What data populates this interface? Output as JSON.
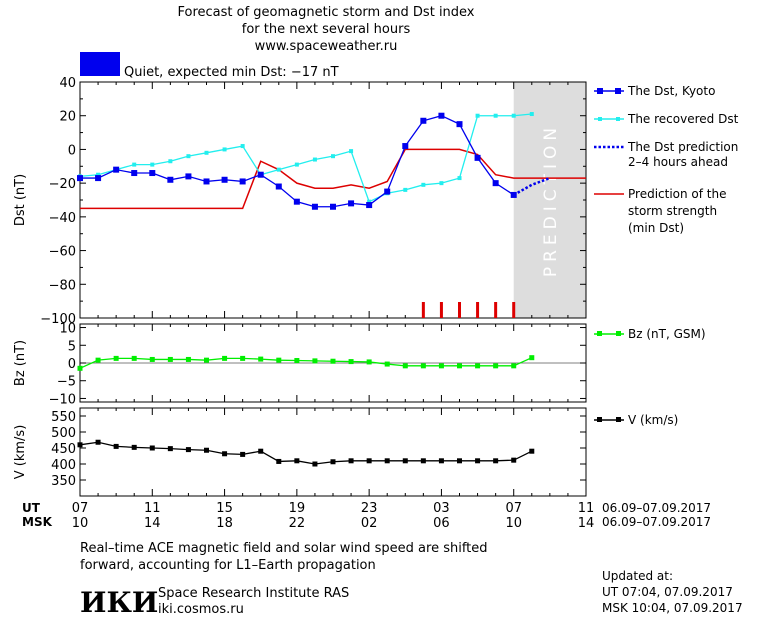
{
  "header": {
    "title_lines": [
      "Forecast of geomagnetic storm and Dst index",
      "for the next several hours",
      "www.spaceweather.ru"
    ],
    "status": "Quiet, expected min Dst: −17 nT",
    "status_color": "#0000ee"
  },
  "prediction_label": "PREDICTION",
  "legend": {
    "dst_kyoto": "The Dst, Kyoto",
    "dst_recovered": "The recovered Dst",
    "dst_prediction": [
      "The Dst prediction",
      "2–4 hours ahead"
    ],
    "storm_strength": [
      "Prediction of the",
      "storm strength",
      "(min Dst)"
    ],
    "bz": "Bz (nT, GSM)",
    "v": "V (km/s)"
  },
  "time_axis": {
    "ut_label": "UT",
    "msk_label": "MSK",
    "ut_ticks": [
      "07",
      "11",
      "15",
      "19",
      "23",
      "03",
      "07",
      "11"
    ],
    "msk_ticks": [
      "10",
      "14",
      "18",
      "22",
      "02",
      "06",
      "10",
      "14"
    ],
    "date_range": "06.09–07.09.2017"
  },
  "footer": {
    "note_lines": [
      "Real–time ACE magnetic field and solar wind speed are shifted",
      "forward, accounting for L1–Earth propagation"
    ],
    "logo_text": "ИКИ",
    "institute": "Space Research Institute RAS",
    "website": "iki.cosmos.ru",
    "updated_label": "Updated at:",
    "updated_ut": "UT   07:04, 07.09.2017",
    "updated_msk": "MSK 10:04, 07.09.2017"
  },
  "colors": {
    "kyoto": "#0000ee",
    "recovered": "#22eeee",
    "prediction_line": "#dd0000",
    "bz": "#00ee00",
    "v": "#000000",
    "prediction_band": "#dddddd"
  },
  "chart_data": [
    {
      "type": "line",
      "ylabel": "Dst (nT)",
      "xlim": [
        0,
        28
      ],
      "ylim": [
        -100,
        40
      ],
      "yticks": [
        40,
        20,
        0,
        -20,
        -40,
        -60,
        -80,
        -100
      ],
      "prediction_region": [
        24,
        28
      ],
      "series": [
        {
          "name": "The Dst, Kyoto",
          "x": [
            0,
            1,
            2,
            3,
            4,
            5,
            6,
            7,
            8,
            9,
            10,
            11,
            12,
            13,
            14,
            15,
            16,
            17,
            18,
            19,
            20,
            21,
            22,
            23,
            24
          ],
          "y": [
            -17,
            -17,
            -12,
            -14,
            -14,
            -18,
            -16,
            -19,
            -18,
            -19,
            -15,
            -22,
            -31,
            -34,
            -34,
            -32,
            -33,
            -25,
            2,
            17,
            20,
            15,
            -5,
            -20,
            -27
          ]
        },
        {
          "name": "The recovered Dst",
          "x": [
            0,
            1,
            2,
            3,
            4,
            5,
            6,
            7,
            8,
            9,
            10,
            11,
            12,
            13,
            14,
            15,
            16,
            17,
            18,
            19,
            20,
            21,
            22,
            23,
            24,
            25
          ],
          "y": [
            -16,
            -15,
            -12,
            -9,
            -9,
            -7,
            -4,
            -2,
            0,
            2,
            -15,
            -12,
            -9,
            -6,
            -4,
            -1,
            -31,
            -26,
            -24,
            -21,
            -20,
            -17,
            20,
            20,
            20,
            21
          ]
        },
        {
          "name": "The Dst prediction 2–4 hours ahead",
          "x": [
            24,
            25,
            26
          ],
          "y": [
            -27,
            -21,
            -17
          ]
        },
        {
          "name": "Prediction of the storm strength (min Dst)",
          "x": [
            0,
            9,
            10,
            11,
            12,
            13,
            14,
            15,
            16,
            17,
            18,
            19,
            20,
            21,
            22,
            23,
            24,
            25,
            26,
            28
          ],
          "y": [
            -35,
            -35,
            -7,
            -12,
            -20,
            -23,
            -23,
            -21,
            -23,
            -19,
            0,
            0,
            0,
            0,
            -3,
            -15,
            -17,
            -17,
            -17,
            -17
          ]
        }
      ],
      "storm_markers_x": [
        19,
        20,
        21,
        22,
        23,
        24
      ]
    },
    {
      "type": "line",
      "ylabel": "Bz (nT)",
      "xlim": [
        0,
        28
      ],
      "ylim": [
        -11,
        11
      ],
      "yticks": [
        10,
        5,
        0,
        -5,
        -10
      ],
      "series": [
        {
          "name": "Bz (nT, GSM)",
          "x": [
            0,
            1,
            2,
            3,
            4,
            5,
            6,
            7,
            8,
            9,
            10,
            11,
            12,
            13,
            14,
            15,
            16,
            17,
            18,
            19,
            20,
            21,
            22,
            23,
            24,
            25
          ],
          "y": [
            -1.5,
            0.8,
            1.3,
            1.3,
            1,
            1,
            1,
            0.8,
            1.3,
            1.3,
            1.1,
            0.8,
            0.7,
            0.6,
            0.5,
            0.4,
            0.3,
            -0.3,
            -0.8,
            -0.8,
            -0.8,
            -0.8,
            -0.8,
            -0.8,
            -0.8,
            1.5
          ]
        }
      ]
    },
    {
      "type": "line",
      "ylabel": "V (km/s)",
      "xlim": [
        0,
        28
      ],
      "ylim": [
        300,
        575
      ],
      "yticks": [
        550,
        500,
        450,
        400,
        350
      ],
      "series": [
        {
          "name": "V (km/s)",
          "x": [
            0,
            1,
            2,
            3,
            4,
            5,
            6,
            7,
            8,
            9,
            10,
            11,
            12,
            13,
            14,
            15,
            16,
            17,
            18,
            19,
            20,
            21,
            22,
            23,
            24,
            25
          ],
          "y": [
            460,
            468,
            455,
            452,
            450,
            448,
            445,
            443,
            432,
            430,
            440,
            408,
            410,
            400,
            407,
            410,
            410,
            410,
            410,
            410,
            410,
            410,
            410,
            410,
            412,
            440
          ]
        }
      ]
    }
  ]
}
